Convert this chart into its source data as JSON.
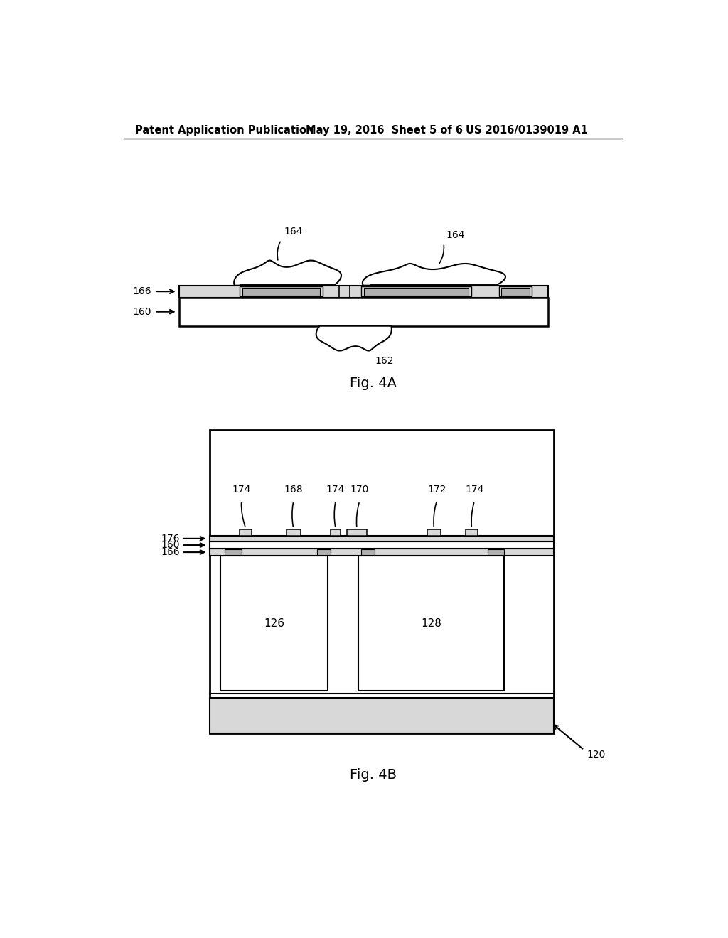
{
  "bg_color": "#ffffff",
  "header_left": "Patent Application Publication",
  "header_mid": "May 19, 2016  Sheet 5 of 6",
  "header_right": "US 2016/0139019 A1",
  "fig4a_label": "Fig. 4A",
  "fig4b_label": "Fig. 4B",
  "line_color": "#000000",
  "fill_light": "#d8d8d8",
  "fill_medium": "#b0b0b0",
  "fill_white": "#ffffff"
}
